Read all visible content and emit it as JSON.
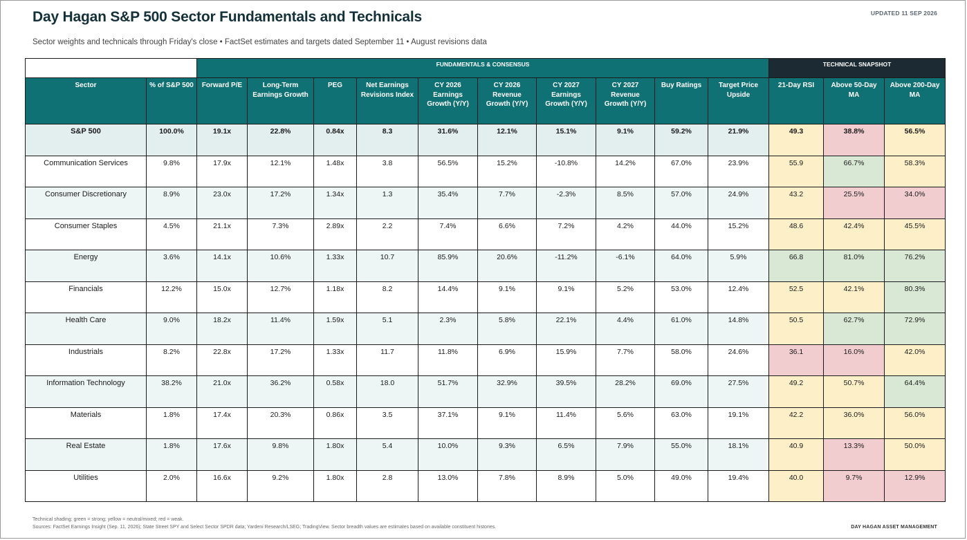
{
  "title": "Day Hagan S&P 500 Sector Fundamentals and Technicals",
  "updated": "UPDATED 11 SEP 2026",
  "subtitle": "Sector weights and technicals through Friday's close • FactSet estimates and targets dated September 11 • August revisions data",
  "groups": {
    "fundamentals": "FUNDAMENTALS & CONSENSUS",
    "technical": "TECHNICAL SNAPSHOT"
  },
  "headers": [
    "Sector",
    "% of S&P 500",
    "Forward P/E",
    "Long-Term Earnings Growth",
    "PEG",
    "Net Earnings Revisions Index",
    "CY 2026 Earnings Growth (Y/Y)",
    "CY 2026 Revenue Growth (Y/Y)",
    "CY 2027 Earnings Growth (Y/Y)",
    "CY 2027 Revenue Growth (Y/Y)",
    "Buy Ratings",
    "Target Price Upside",
    "21-Day RSI",
    "Above 50-Day MA",
    "Above 200-Day MA"
  ],
  "shading_colors": {
    "g": "#d8e8d4",
    "y": "#fdf0c8",
    "r": "#f2cdcf"
  },
  "rows": [
    {
      "sector": "S&P 500",
      "fund": [
        "100.0%",
        "19.1x",
        "22.8%",
        "0.84x",
        "8.3",
        "31.6%",
        "12.1%",
        "15.1%",
        "9.1%",
        "59.2%",
        "21.9%"
      ],
      "tech": [
        "49.3",
        "38.8%",
        "56.5%"
      ],
      "shade": [
        "y",
        "r",
        "y"
      ]
    },
    {
      "sector": "Communication Services",
      "fund": [
        "9.8%",
        "17.9x",
        "12.1%",
        "1.48x",
        "3.8",
        "56.5%",
        "15.2%",
        "-10.8%",
        "14.2%",
        "67.0%",
        "23.9%"
      ],
      "tech": [
        "55.9",
        "66.7%",
        "58.3%"
      ],
      "shade": [
        "y",
        "g",
        "y"
      ]
    },
    {
      "sector": "Consumer Discretionary",
      "fund": [
        "8.9%",
        "23.0x",
        "17.2%",
        "1.34x",
        "1.3",
        "35.4%",
        "7.7%",
        "-2.3%",
        "8.5%",
        "57.0%",
        "24.9%"
      ],
      "tech": [
        "43.2",
        "25.5%",
        "34.0%"
      ],
      "shade": [
        "y",
        "r",
        "r"
      ]
    },
    {
      "sector": "Consumer Staples",
      "fund": [
        "4.5%",
        "21.1x",
        "7.3%",
        "2.89x",
        "2.2",
        "7.4%",
        "6.6%",
        "7.2%",
        "4.2%",
        "44.0%",
        "15.2%"
      ],
      "tech": [
        "48.6",
        "42.4%",
        "45.5%"
      ],
      "shade": [
        "y",
        "y",
        "y"
      ]
    },
    {
      "sector": "Energy",
      "fund": [
        "3.6%",
        "14.1x",
        "10.6%",
        "1.33x",
        "10.7",
        "85.9%",
        "20.6%",
        "-11.2%",
        "-6.1%",
        "64.0%",
        "5.9%"
      ],
      "tech": [
        "66.8",
        "81.0%",
        "76.2%"
      ],
      "shade": [
        "g",
        "g",
        "g"
      ]
    },
    {
      "sector": "Financials",
      "fund": [
        "12.2%",
        "15.0x",
        "12.7%",
        "1.18x",
        "8.2",
        "14.4%",
        "9.1%",
        "9.1%",
        "5.2%",
        "53.0%",
        "12.4%"
      ],
      "tech": [
        "52.5",
        "42.1%",
        "80.3%"
      ],
      "shade": [
        "y",
        "y",
        "g"
      ]
    },
    {
      "sector": "Health Care",
      "fund": [
        "9.0%",
        "18.2x",
        "11.4%",
        "1.59x",
        "5.1",
        "2.3%",
        "5.8%",
        "22.1%",
        "4.4%",
        "61.0%",
        "14.8%"
      ],
      "tech": [
        "50.5",
        "62.7%",
        "72.9%"
      ],
      "shade": [
        "y",
        "g",
        "g"
      ]
    },
    {
      "sector": "Industrials",
      "fund": [
        "8.2%",
        "22.8x",
        "17.2%",
        "1.33x",
        "11.7",
        "11.8%",
        "6.9%",
        "15.9%",
        "7.7%",
        "58.0%",
        "24.6%"
      ],
      "tech": [
        "36.1",
        "16.0%",
        "42.0%"
      ],
      "shade": [
        "r",
        "r",
        "y"
      ]
    },
    {
      "sector": "Information Technology",
      "fund": [
        "38.2%",
        "21.0x",
        "36.2%",
        "0.58x",
        "18.0",
        "51.7%",
        "32.9%",
        "39.5%",
        "28.2%",
        "69.0%",
        "27.5%"
      ],
      "tech": [
        "49.2",
        "50.7%",
        "64.4%"
      ],
      "shade": [
        "y",
        "y",
        "g"
      ]
    },
    {
      "sector": "Materials",
      "fund": [
        "1.8%",
        "17.4x",
        "20.3%",
        "0.86x",
        "3.5",
        "37.1%",
        "9.1%",
        "11.4%",
        "5.6%",
        "63.0%",
        "19.1%"
      ],
      "tech": [
        "42.2",
        "36.0%",
        "56.0%"
      ],
      "shade": [
        "y",
        "y",
        "y"
      ]
    },
    {
      "sector": "Real Estate",
      "fund": [
        "1.8%",
        "17.6x",
        "9.8%",
        "1.80x",
        "5.4",
        "10.0%",
        "9.3%",
        "6.5%",
        "7.9%",
        "55.0%",
        "18.1%"
      ],
      "tech": [
        "40.9",
        "13.3%",
        "50.0%"
      ],
      "shade": [
        "y",
        "r",
        "y"
      ]
    },
    {
      "sector": "Utilities",
      "fund": [
        "2.0%",
        "16.6x",
        "9.2%",
        "1.80x",
        "2.8",
        "13.0%",
        "7.8%",
        "8.9%",
        "5.0%",
        "49.0%",
        "19.4%"
      ],
      "tech": [
        "40.0",
        "9.7%",
        "12.9%"
      ],
      "shade": [
        "y",
        "r",
        "r"
      ]
    }
  ],
  "footer": {
    "note": "Technical shading: green = strong; yellow = neutral/mixed; red = weak.",
    "sources": "Sources: FactSet Earnings Insight (Sep. 11, 2026); State Street SPY and Select Sector SPDR data; Yardeni Research/LSEG; TradingView. Sector breadth values are estimates based on available constituent histories.",
    "brand": "DAY HAGAN ASSET MANAGEMENT"
  }
}
